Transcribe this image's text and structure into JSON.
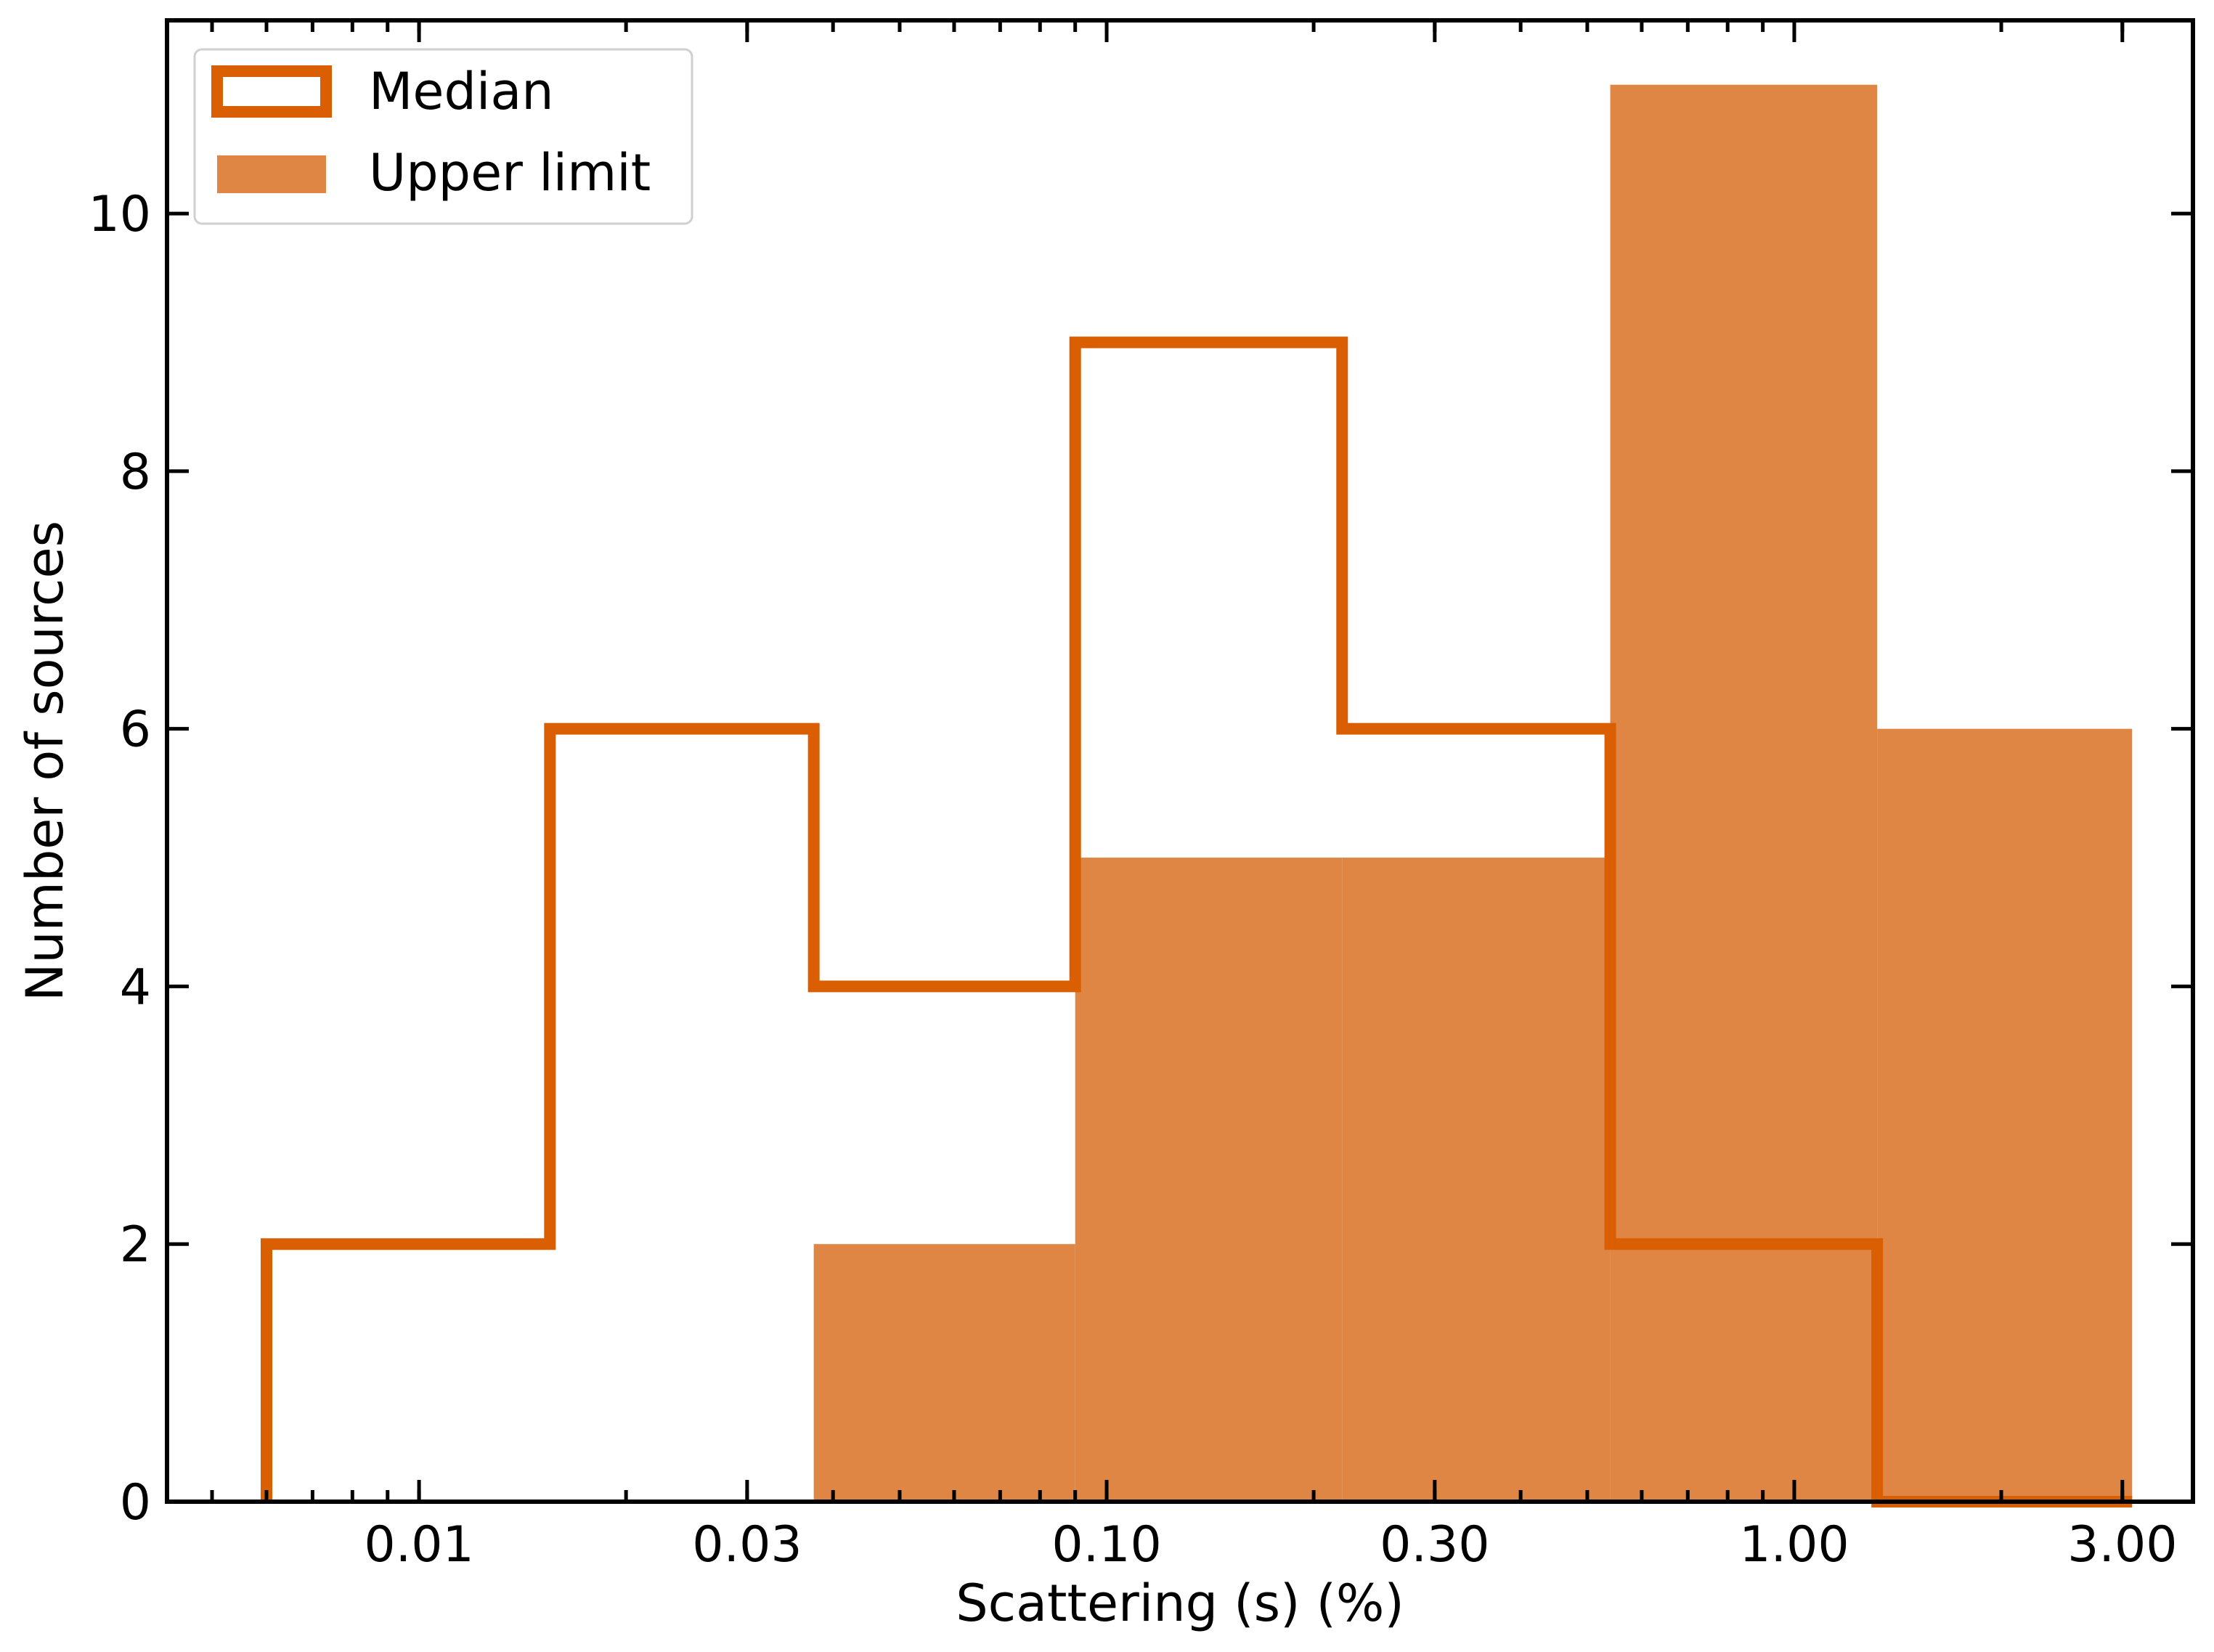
{
  "chart_data": {
    "type": "bar",
    "subtype": "histogram",
    "xlabel": "Scattering (s) (%)",
    "ylabel": "Number of sources",
    "x_scale": "log",
    "xlim": [
      0.0043,
      3.8
    ],
    "ylim": [
      0,
      11.5
    ],
    "bin_edges": [
      0.006,
      0.0155,
      0.0375,
      0.09,
      0.22,
      0.54,
      1.32,
      3.1
    ],
    "series": [
      {
        "name": "Median",
        "style": "step",
        "color": "#d95f02",
        "values": [
          2,
          6,
          4,
          9,
          6,
          2,
          0
        ]
      },
      {
        "name": "Upper limit",
        "style": "filled",
        "color": "#df8644",
        "values": [
          0,
          0,
          2,
          5,
          5,
          11,
          6
        ]
      }
    ],
    "x_ticks": [
      {
        "value": 0.01,
        "label": "0.01"
      },
      {
        "value": 0.03,
        "label": "0.03"
      },
      {
        "value": 0.1,
        "label": "0.10"
      },
      {
        "value": 0.3,
        "label": "0.30"
      },
      {
        "value": 1.0,
        "label": "1.00"
      },
      {
        "value": 3.0,
        "label": "3.00"
      }
    ],
    "y_ticks": [
      {
        "value": 0,
        "label": "0"
      },
      {
        "value": 2,
        "label": "2"
      },
      {
        "value": 4,
        "label": "4"
      },
      {
        "value": 6,
        "label": "6"
      },
      {
        "value": 8,
        "label": "8"
      },
      {
        "value": 10,
        "label": "10"
      }
    ],
    "legend_position": "top-left",
    "grid": false
  }
}
